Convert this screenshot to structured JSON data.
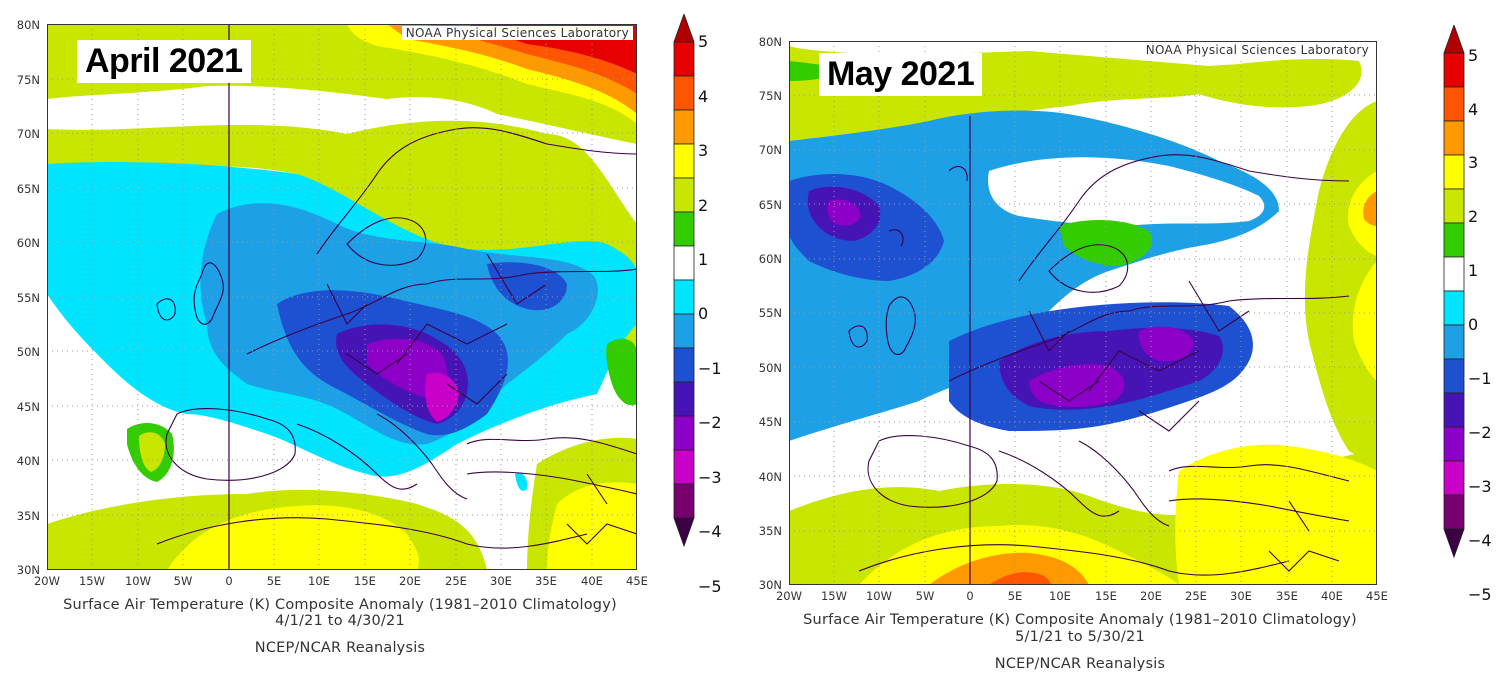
{
  "colorbar": {
    "labels": [
      "5",
      "4",
      "3",
      "2",
      "1",
      "0",
      "−1",
      "−2",
      "−3",
      "−4",
      "−5"
    ],
    "colors": [
      "#b00000",
      "#e60000",
      "#ff5500",
      "#ff9900",
      "#ffff00",
      "#c8e600",
      "#33cc00",
      "#ffffff",
      "#00e5ff",
      "#1ea0e6",
      "#1e50d2",
      "#4614b4",
      "#8c00c8",
      "#c800c8",
      "#78006e",
      "#3c0046"
    ]
  },
  "axes": {
    "y_ticks": [
      "80N",
      "75N",
      "70N",
      "65N",
      "60N",
      "55N",
      "50N",
      "45N",
      "40N",
      "35N",
      "30N"
    ],
    "x_ticks": [
      "20W",
      "15W",
      "10W",
      "5W",
      "0",
      "5E",
      "10E",
      "15E",
      "20E",
      "25E",
      "30E",
      "35E",
      "40E",
      "45E"
    ]
  },
  "panels": [
    {
      "month_label": "April 2021",
      "credit": "NOAA Physical Sciences Laboratory",
      "caption_line1": "Surface Air Temperature (K) Composite Anomaly (1981–2010 Climatology)",
      "caption_line2": "4/1/21   to 4/30/21",
      "caption_line3": "NCEP/NCAR Reanalysis"
    },
    {
      "month_label": "May 2021",
      "credit": "NOAA Physical Sciences Laboratory",
      "caption_line1": "Surface Air Temperature (K) Composite Anomaly (1981–2010 Climatology)",
      "caption_line2": "5/1/21   to 5/30/21",
      "caption_line3": "NCEP/NCAR Reanalysis"
    }
  ]
}
